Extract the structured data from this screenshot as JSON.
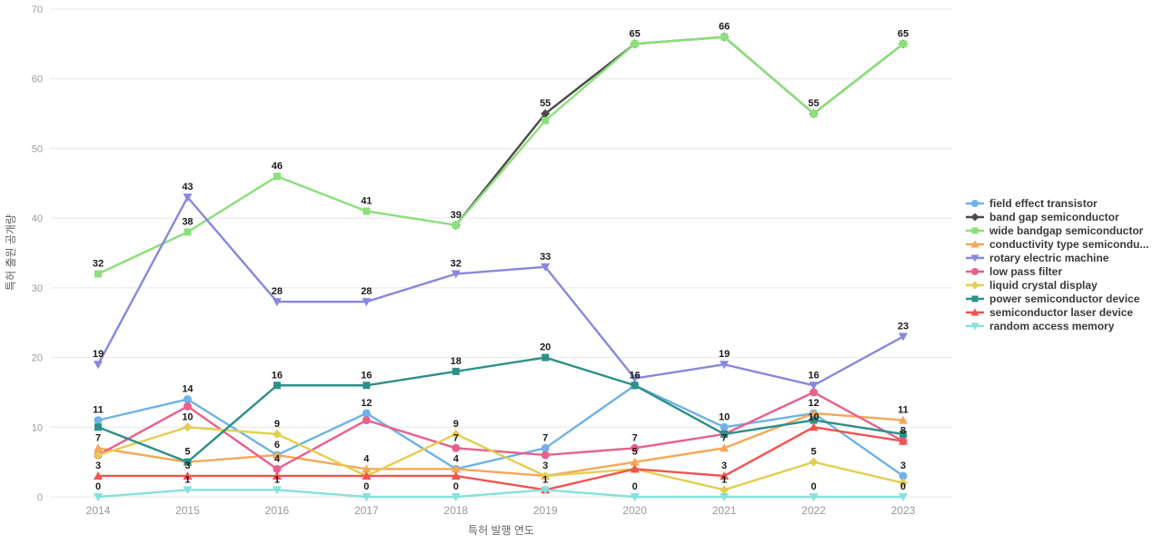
{
  "chart_data": {
    "type": "line",
    "title": "",
    "xlabel": "특허 발행 연도",
    "ylabel": "특허 출원 공개량",
    "x": [
      "2014",
      "2015",
      "2016",
      "2017",
      "2018",
      "2019",
      "2020",
      "2021",
      "2022",
      "2023"
    ],
    "ylim": [
      0,
      70
    ],
    "yticks": [
      0,
      10,
      20,
      30,
      40,
      50,
      60,
      70
    ],
    "grid": true,
    "legend_position": "right",
    "colors": {
      "grid": "#e7e7e7",
      "tick_text": "#999999",
      "axis_title_text": "#666666",
      "data_label_text": "#1b1b1b",
      "legend_text": "#3a3a3a"
    },
    "series": [
      {
        "name": "field effect transistor",
        "color": "#6EB2E7",
        "marker": "circle",
        "values": [
          11,
          14,
          6,
          12,
          4,
          7,
          16,
          10,
          12,
          3
        ],
        "labels_shown": [
          true,
          true,
          true,
          true,
          true,
          true,
          false,
          true,
          true,
          true
        ]
      },
      {
        "name": "band gap semiconductor",
        "color": "#4B4B4B",
        "marker": "diamond",
        "values": [
          null,
          null,
          null,
          null,
          39,
          55,
          65,
          66,
          55,
          65
        ],
        "labels_shown": [
          false,
          false,
          false,
          false,
          false,
          true,
          false,
          false,
          false,
          false
        ]
      },
      {
        "name": "wide bandgap semiconductor",
        "color": "#8BE07A",
        "marker": "square",
        "values": [
          32,
          38,
          46,
          41,
          39,
          54,
          65,
          66,
          55,
          65
        ],
        "labels_shown": [
          true,
          true,
          true,
          true,
          true,
          false,
          true,
          true,
          true,
          true
        ]
      },
      {
        "name": "conductivity type semicondu...",
        "color": "#F6A758",
        "marker": "triangle-up",
        "values": [
          7,
          5,
          6,
          4,
          4,
          3,
          5,
          7,
          12,
          11
        ],
        "labels_shown": [
          true,
          false,
          false,
          true,
          false,
          true,
          true,
          true,
          false,
          true
        ]
      },
      {
        "name": "rotary electric machine",
        "color": "#8887DE",
        "marker": "triangle-down",
        "values": [
          19,
          43,
          28,
          28,
          32,
          33,
          17,
          19,
          16,
          23
        ],
        "labels_shown": [
          true,
          true,
          true,
          true,
          true,
          true,
          false,
          true,
          true,
          true
        ]
      },
      {
        "name": "low pass filter",
        "color": "#E9608D",
        "marker": "circle",
        "values": [
          6,
          13,
          4,
          11,
          7,
          6,
          7,
          9,
          15,
          8
        ],
        "labels_shown": [
          false,
          false,
          true,
          false,
          true,
          false,
          true,
          false,
          false,
          true
        ]
      },
      {
        "name": "liquid crystal display",
        "color": "#E3CE52",
        "marker": "diamond",
        "values": [
          6,
          10,
          9,
          3,
          9,
          3,
          4,
          1,
          5,
          2
        ],
        "labels_shown": [
          false,
          true,
          true,
          false,
          true,
          false,
          false,
          true,
          true,
          false
        ]
      },
      {
        "name": "power semiconductor device",
        "color": "#2D9089",
        "marker": "square",
        "values": [
          10,
          5,
          16,
          16,
          18,
          20,
          16,
          9,
          11,
          9
        ],
        "labels_shown": [
          false,
          true,
          true,
          true,
          true,
          true,
          true,
          false,
          false,
          false
        ]
      },
      {
        "name": "semiconductor laser device",
        "color": "#F05451",
        "marker": "triangle-up",
        "values": [
          3,
          3,
          3,
          3,
          3,
          1,
          4,
          3,
          10,
          8
        ],
        "labels_shown": [
          true,
          true,
          false,
          false,
          false,
          true,
          false,
          true,
          true,
          false
        ]
      },
      {
        "name": "random access memory",
        "color": "#85E2DD",
        "marker": "triangle-down",
        "values": [
          0,
          1,
          1,
          0,
          0,
          1,
          0,
          0,
          0,
          0
        ],
        "labels_shown": [
          true,
          true,
          true,
          true,
          true,
          false,
          true,
          false,
          true,
          true
        ]
      }
    ]
  }
}
